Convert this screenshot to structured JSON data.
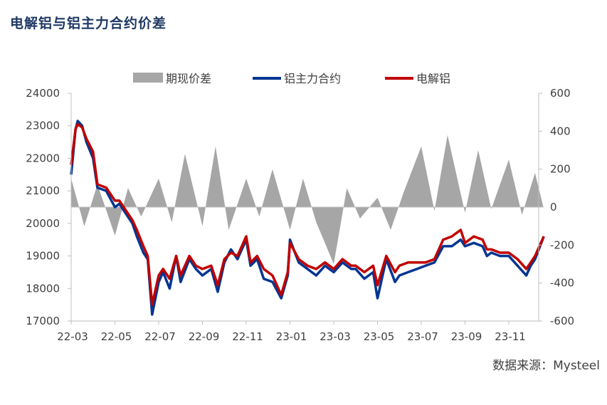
{
  "title": "电解铝与铝主力合约价差",
  "source": "数据来源：Mysteel",
  "chart_data": {
    "type": "line",
    "x_tick_labels": [
      "22-03",
      "22-05",
      "22-07",
      "22-09",
      "22-11",
      "23-01",
      "23-03",
      "23-05",
      "23-07",
      "23-09",
      "23-11"
    ],
    "y_left": {
      "min": 17000,
      "max": 24000,
      "step": 1000,
      "tick_labels": [
        "17000",
        "18000",
        "19000",
        "20000",
        "21000",
        "22000",
        "23000",
        "24000"
      ]
    },
    "y_right": {
      "min": -600,
      "max": 600,
      "step": 200,
      "tick_labels": [
        "-600",
        "-400",
        "-200",
        "0",
        "200",
        "400",
        "600"
      ]
    },
    "legend_position": "top",
    "series": [
      {
        "name": "期现价差",
        "kind": "area",
        "axis": "right",
        "color": "#a6a6a6",
        "x": [
          0,
          0.3,
          0.6,
          1,
          1.3,
          1.6,
          2,
          2.3,
          2.6,
          3,
          3.3,
          3.6,
          4,
          4.3,
          4.6,
          5,
          5.3,
          5.6,
          6,
          6.3,
          6.6,
          7,
          7.3,
          7.6,
          8,
          8.3,
          8.6,
          9,
          9.3,
          9.6,
          10,
          10.3,
          10.6,
          10.8
        ],
        "values": [
          150,
          -100,
          120,
          -150,
          100,
          -50,
          150,
          -80,
          280,
          -100,
          320,
          -120,
          150,
          -50,
          200,
          -120,
          150,
          -80,
          -300,
          100,
          -60,
          50,
          -120,
          80,
          320,
          -20,
          380,
          -30,
          300,
          -10,
          250,
          -40,
          180,
          -10
        ]
      },
      {
        "name": "铝主力合约",
        "kind": "line",
        "axis": "left",
        "color": "#003591",
        "x": [
          0,
          0.1,
          0.15,
          0.25,
          0.35,
          0.5,
          0.6,
          0.8,
          1,
          1.1,
          1.25,
          1.4,
          1.5,
          1.65,
          1.75,
          1.85,
          2,
          2.1,
          2.25,
          2.4,
          2.5,
          2.7,
          2.85,
          3,
          3.2,
          3.35,
          3.5,
          3.65,
          3.8,
          4,
          4.1,
          4.25,
          4.4,
          4.6,
          4.8,
          4.95,
          5,
          5.2,
          5.4,
          5.6,
          5.8,
          6,
          6.2,
          6.4,
          6.5,
          6.7,
          6.9,
          7,
          7.2,
          7.4,
          7.5,
          7.7,
          7.9,
          8.1,
          8.3,
          8.5,
          8.7,
          8.9,
          9,
          9.2,
          9.4,
          9.5,
          9.6,
          9.8,
          10,
          10.2,
          10.4,
          10.5,
          10.6,
          10.8
        ],
        "values": [
          21500,
          22900,
          23150,
          23000,
          22500,
          22000,
          21100,
          21000,
          20500,
          20600,
          20300,
          20000,
          19600,
          19100,
          18900,
          17200,
          18200,
          18500,
          18000,
          19000,
          18200,
          18900,
          18600,
          18400,
          18600,
          17900,
          18800,
          19200,
          18900,
          19500,
          18700,
          18900,
          18300,
          18200,
          17700,
          18400,
          19500,
          18800,
          18600,
          18400,
          18700,
          18500,
          18800,
          18600,
          18600,
          18300,
          18500,
          17700,
          18900,
          18200,
          18400,
          18500,
          18600,
          18700,
          18800,
          19300,
          19300,
          19500,
          19300,
          19400,
          19300,
          19000,
          19100,
          19000,
          19000,
          18700,
          18400,
          18700,
          18900,
          19600
        ]
      },
      {
        "name": "电解铝",
        "kind": "line",
        "axis": "left",
        "color": "#c00000",
        "x": [
          0,
          0.1,
          0.15,
          0.25,
          0.35,
          0.5,
          0.6,
          0.8,
          1,
          1.1,
          1.25,
          1.4,
          1.5,
          1.65,
          1.75,
          1.85,
          2,
          2.1,
          2.25,
          2.4,
          2.5,
          2.7,
          2.85,
          3,
          3.2,
          3.35,
          3.5,
          3.65,
          3.8,
          4,
          4.1,
          4.25,
          4.4,
          4.6,
          4.8,
          4.95,
          5,
          5.2,
          5.4,
          5.6,
          5.8,
          6,
          6.2,
          6.4,
          6.5,
          6.7,
          6.9,
          7,
          7.2,
          7.4,
          7.5,
          7.7,
          7.9,
          8.1,
          8.3,
          8.5,
          8.7,
          8.9,
          9,
          9.2,
          9.4,
          9.5,
          9.6,
          9.8,
          10,
          10.2,
          10.4,
          10.5,
          10.6,
          10.8
        ],
        "values": [
          21800,
          22900,
          23050,
          22950,
          22600,
          22200,
          21200,
          21100,
          20700,
          20700,
          20400,
          20100,
          19800,
          19300,
          19000,
          17500,
          18400,
          18600,
          18300,
          19000,
          18400,
          19000,
          18700,
          18600,
          18700,
          18100,
          18900,
          19100,
          19000,
          19600,
          18800,
          19000,
          18600,
          18400,
          17800,
          18500,
          19400,
          18900,
          18700,
          18600,
          18800,
          18600,
          18900,
          18700,
          18700,
          18500,
          18700,
          18100,
          19000,
          18500,
          18700,
          18800,
          18800,
          18800,
          18900,
          19500,
          19600,
          19800,
          19400,
          19600,
          19500,
          19200,
          19200,
          19100,
          19100,
          18900,
          18600,
          18800,
          19000,
          19600
        ]
      }
    ]
  }
}
